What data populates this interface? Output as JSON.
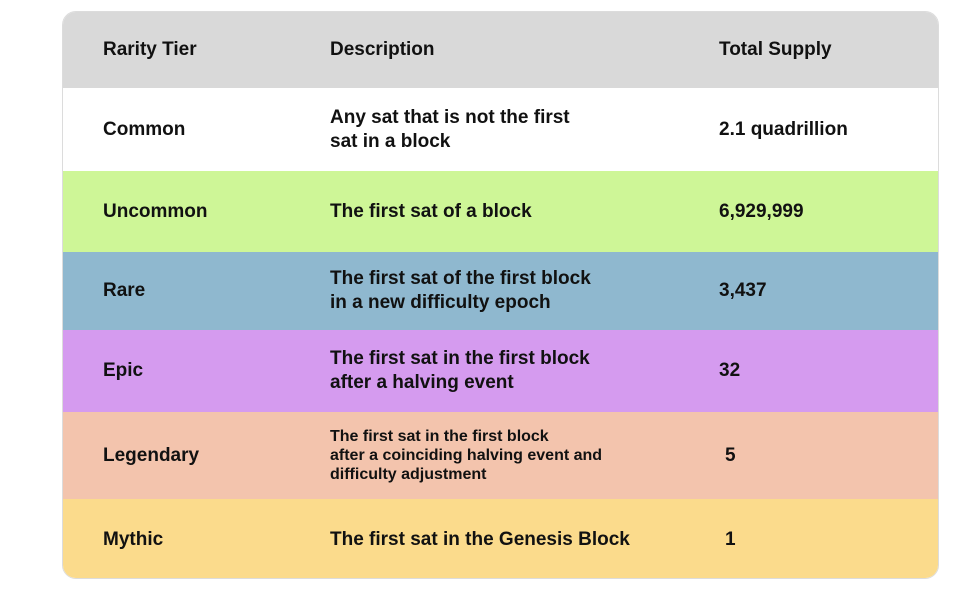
{
  "table": {
    "headers": [
      "Rarity Tier",
      "Description",
      "Total Supply"
    ],
    "rows": [
      {
        "tier": "Common",
        "description": [
          "Any sat that is not the first",
          "sat in a block"
        ],
        "supply": "2.1 quadrillion",
        "color": "#ffffff"
      },
      {
        "tier": "Uncommon",
        "description": [
          "The first sat of a block"
        ],
        "supply": "6,929,999",
        "color": "#cef697"
      },
      {
        "tier": "Rare",
        "description": [
          "The first sat of the first block",
          "in a new difficulty epoch"
        ],
        "supply": "3,437",
        "color": "#8fb8cf"
      },
      {
        "tier": "Epic",
        "description": [
          "The first sat in the first block",
          "after a halving event"
        ],
        "supply": "32",
        "color": "#d59bef"
      },
      {
        "tier": "Legendary",
        "description": [
          "The first sat in the first block",
          "after a coinciding halving event and",
          "difficulty adjustment"
        ],
        "supply": "5",
        "color": "#f3c4ad"
      },
      {
        "tier": "Mythic",
        "description": [
          "The first sat in the Genesis Block"
        ],
        "supply": "1",
        "color": "#fbdb8c"
      }
    ],
    "header_color": "#d9d9d9"
  }
}
